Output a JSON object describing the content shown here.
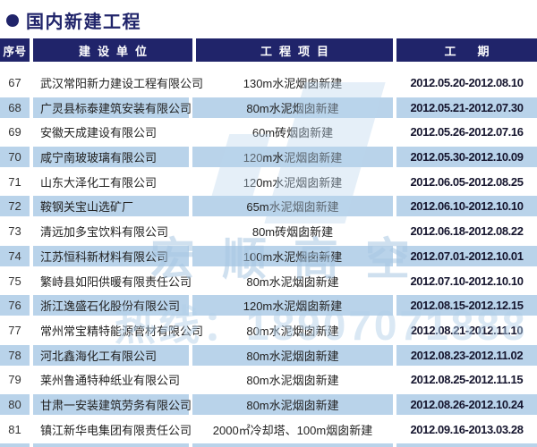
{
  "title": {
    "text": "国内新建工程"
  },
  "icons": {
    "title_bullet": "filled-circle"
  },
  "colors": {
    "navy": "#20246a",
    "stripe": "#b9d3ea"
  },
  "table": {
    "columns": [
      "序号",
      "建设单位",
      "工程项目",
      "工期"
    ],
    "rows": [
      {
        "no": "67",
        "company": "武汉常阳新力建设工程有限公司",
        "project": "130m水泥烟囱新建",
        "period": "2012.05.20-2012.08.10"
      },
      {
        "no": "68",
        "company": "广灵县标泰建筑安装有限公司",
        "project": "80m水泥烟囱新建",
        "period": "2012.05.21-2012.07.30"
      },
      {
        "no": "69",
        "company": "安徽天成建设有限公司",
        "project": "60m砖烟囱新建",
        "period": "2012.05.26-2012.07.16"
      },
      {
        "no": "70",
        "company": "咸宁南玻玻璃有限公司",
        "project": "120m水泥烟囱新建",
        "period": "2012.05.30-2012.10.09"
      },
      {
        "no": "71",
        "company": "山东大泽化工有限公司",
        "project": "120m水泥烟囱新建",
        "period": "2012.06.05-2012.08.25"
      },
      {
        "no": "72",
        "company": "鞍钢关宝山选矿厂",
        "project": "65m水泥烟囱新建",
        "period": "2012.06.10-2012.10.10"
      },
      {
        "no": "73",
        "company": "清远加多宝饮料有限公司",
        "project": "80m砖烟囱新建",
        "period": "2012.06.18-2012.08.22"
      },
      {
        "no": "74",
        "company": "江苏恒科新材料有限公司",
        "project": "100m水泥烟囱新建",
        "period": "2012.07.01-2012.10.01"
      },
      {
        "no": "75",
        "company": "繁峙县如阳供暖有限责任公司",
        "project": "80m水泥烟囱新建",
        "period": "2012.07.10-2012.10.10"
      },
      {
        "no": "76",
        "company": "浙江逸盛石化股份有限公司",
        "project": "120m水泥烟囱新建",
        "period": "2012.08.15-2012.12.15"
      },
      {
        "no": "77",
        "company": "常州常宝精特能源管材有限公司",
        "project": "80m水泥烟囱新建",
        "period": "2012.08.21-2012.11.10"
      },
      {
        "no": "78",
        "company": "河北鑫海化工有限公司",
        "project": "80m水泥烟囱新建",
        "period": "2012.08.23-2012.11.02"
      },
      {
        "no": "79",
        "company": "莱州鲁通特种纸业有限公司",
        "project": "80m水泥烟囱新建",
        "period": "2012.08.25-2012.11.15"
      },
      {
        "no": "80",
        "company": "甘肃一安装建筑劳务有限公司",
        "project": "80m水泥烟囱新建",
        "period": "2012.08.26-2012.10.24"
      },
      {
        "no": "81",
        "company": "镇江新华电集团有限责任公司",
        "project": "2000㎡冷却塔、100m烟囱新建",
        "period": "2012.09.16-2013.03.28"
      }
    ]
  },
  "watermark": {
    "brand": "宏顺高空",
    "hotline": "热线：18907071888"
  }
}
